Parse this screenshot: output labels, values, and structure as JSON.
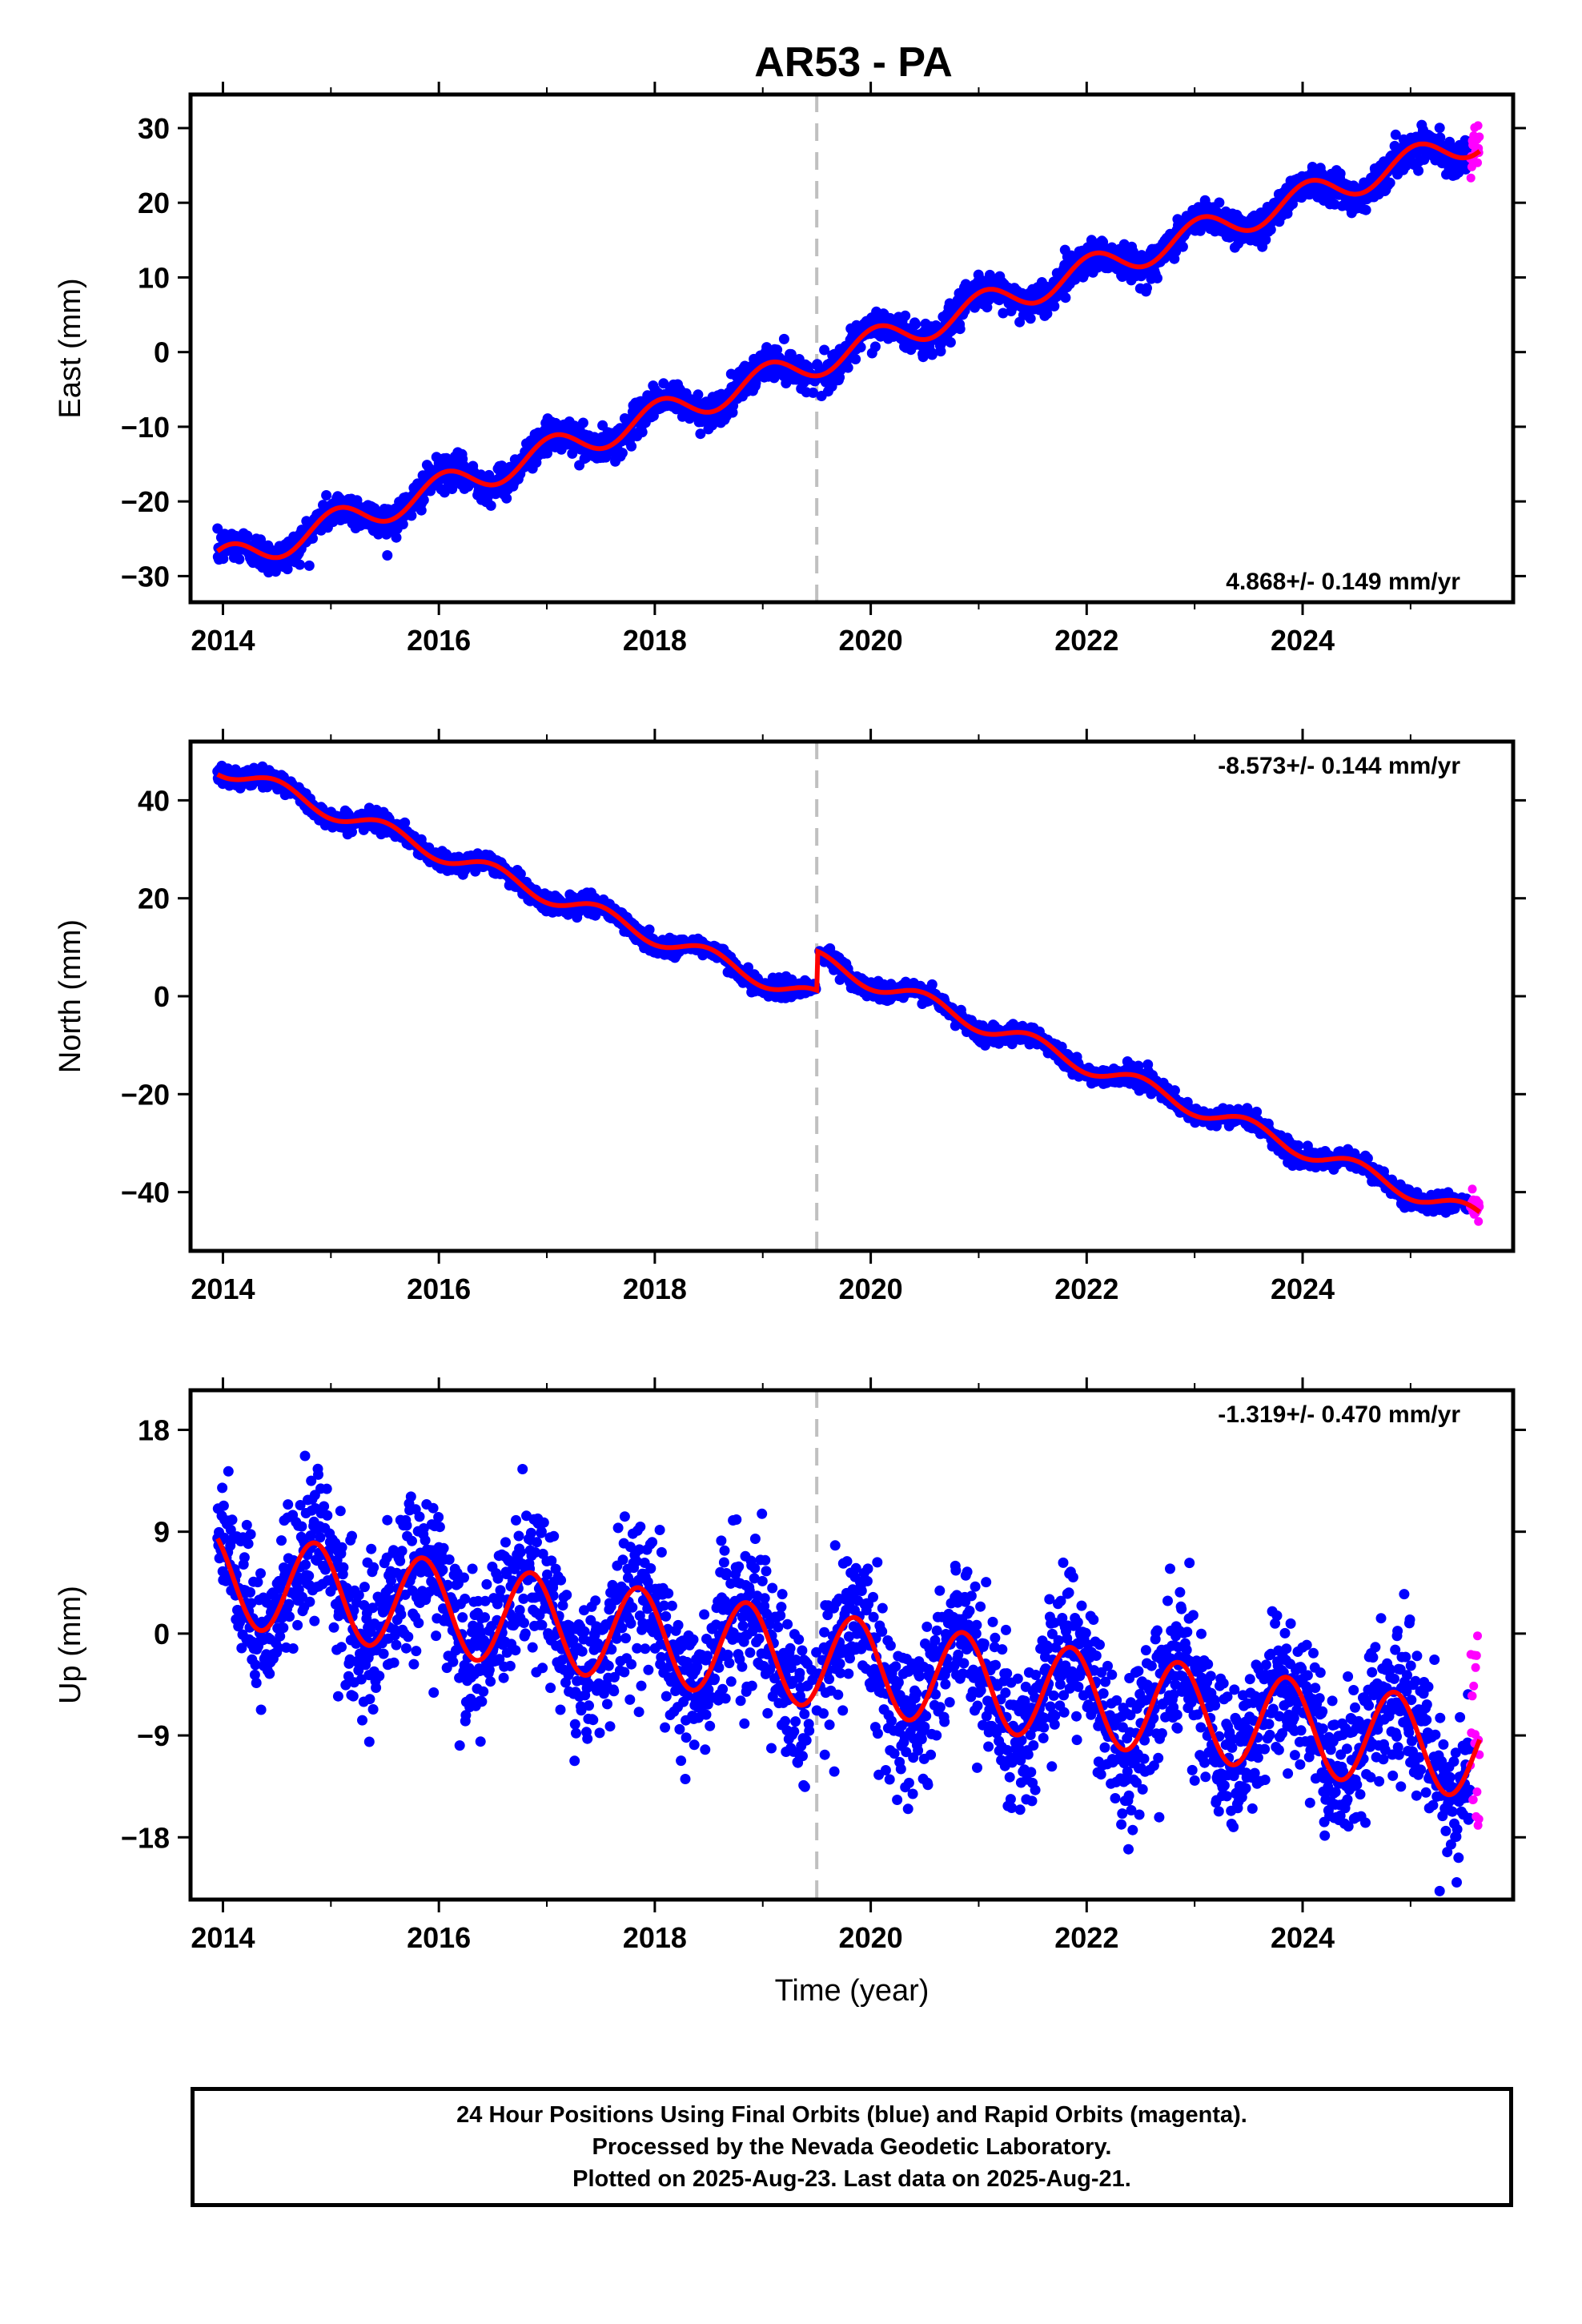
{
  "title": "AR53 - PA",
  "colors": {
    "final_orbits": "#0000ff",
    "rapid_orbits": "#ff00ff",
    "model_fit": "#ff0000",
    "event_marker": "#c0c0c0",
    "frame": "#000000"
  },
  "chart_data": [
    {
      "type": "scatter",
      "name": "east",
      "ylabel": "East (mm)",
      "xlabel": "",
      "xlim": [
        2013.7,
        2025.95
      ],
      "ylim": [
        -33.5,
        34.5
      ],
      "yticks": [
        -30,
        -20,
        -10,
        0,
        10,
        20,
        30
      ],
      "xticks": [
        2014,
        2016,
        2018,
        2020,
        2022,
        2024
      ],
      "rate": 4.868,
      "rate_text": "4.868+/- 0.149 mm/yr",
      "rate_position": "bottom-right",
      "event_line_x": 2019.5,
      "rapid_start": 2025.55,
      "data_start": 2013.95,
      "data_end": 2025.64,
      "model": {
        "offset": -28.3,
        "annual_amplitude": 2.0,
        "annual_peak": 0.05,
        "noise_sd": 1.1
      },
      "series": [
        {
          "name": "Final Orbits",
          "color": "#0000ff"
        },
        {
          "name": "Rapid Orbits",
          "color": "#ff00ff"
        },
        {
          "name": "Model",
          "color": "#ff0000"
        }
      ]
    },
    {
      "type": "scatter",
      "name": "north",
      "ylabel": "North (mm)",
      "xlabel": "",
      "xlim": [
        2013.7,
        2025.95
      ],
      "ylim": [
        -52,
        52
      ],
      "yticks": [
        -40,
        -20,
        0,
        20,
        40
      ],
      "xticks": [
        2014,
        2016,
        2018,
        2020,
        2022,
        2024
      ],
      "rate": -8.573,
      "rate_text": "-8.573+/- 0.144 mm/yr",
      "rate_position": "top-right",
      "event_line_x": 2019.5,
      "event_offset": 8.0,
      "rapid_start": 2025.55,
      "data_start": 2013.95,
      "data_end": 2025.64,
      "model": {
        "offset": 47.0,
        "annual_amplitude": 1.8,
        "annual_peak": 0.5,
        "noise_sd": 0.9
      },
      "series": [
        {
          "name": "Final Orbits",
          "color": "#0000ff"
        },
        {
          "name": "Rapid Orbits",
          "color": "#ff00ff"
        },
        {
          "name": "Model",
          "color": "#ff0000"
        }
      ]
    },
    {
      "type": "scatter",
      "name": "up",
      "ylabel": "Up (mm)",
      "xlabel": "Time (year)",
      "xlim": [
        2013.7,
        2025.95
      ],
      "ylim": [
        -23.5,
        21.5
      ],
      "yticks": [
        -18,
        -9,
        0,
        9,
        18
      ],
      "xticks": [
        2014,
        2016,
        2018,
        2020,
        2022,
        2024
      ],
      "rate": -1.319,
      "rate_text": "-1.319+/- 0.470 mm/yr",
      "rate_position": "top-right",
      "event_line_x": 2019.5,
      "rapid_start": 2025.55,
      "data_start": 2013.95,
      "data_end": 2025.64,
      "model": {
        "offset": 5.0,
        "annual_amplitude": 4.2,
        "annual_peak": 0.85,
        "noise_sd": 3.2
      },
      "series": [
        {
          "name": "Final Orbits",
          "color": "#0000ff"
        },
        {
          "name": "Rapid Orbits",
          "color": "#ff00ff"
        },
        {
          "name": "Model",
          "color": "#ff0000"
        }
      ]
    }
  ],
  "caption": {
    "line1": "24 Hour Positions Using Final Orbits (blue) and Rapid Orbits (magenta).",
    "line2": "Processed by the Nevada Geodetic Laboratory.",
    "line3": "Plotted on 2025-Aug-23. Last data on 2025-Aug-21."
  }
}
